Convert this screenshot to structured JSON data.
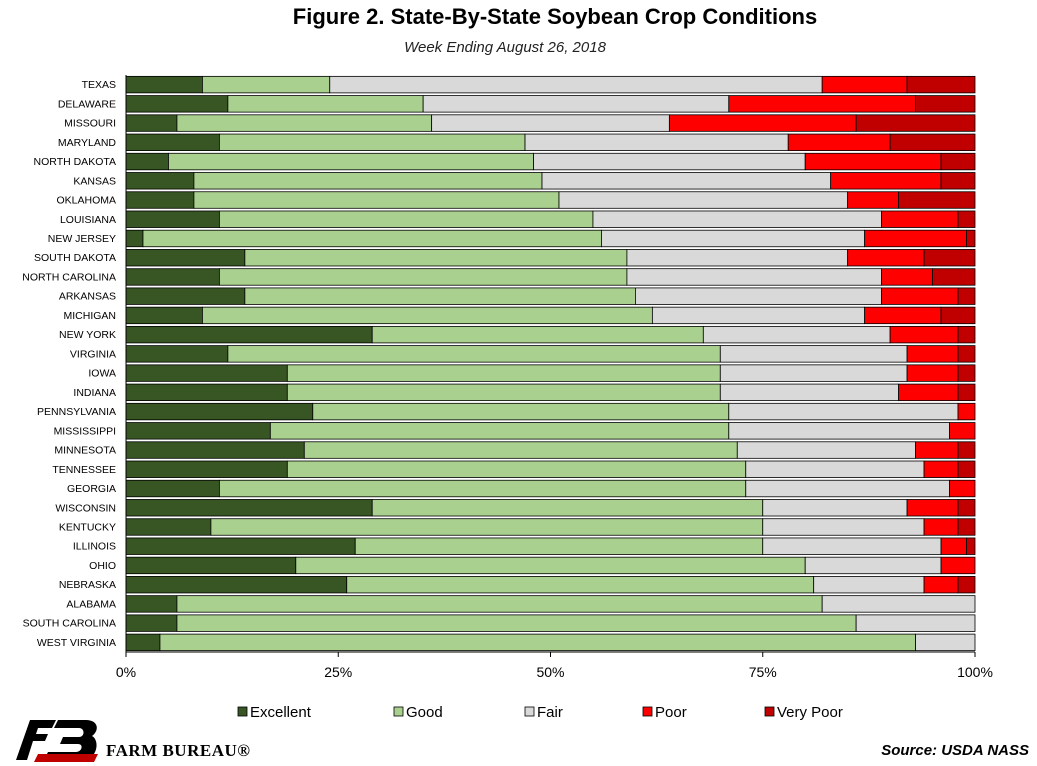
{
  "header": {
    "title": "Figure 2. State-By-State Soybean Crop Conditions",
    "subtitle": "Week Ending August 26, 2018"
  },
  "footer": {
    "source": "Source: USDA NASS",
    "brand": "FARM BUREAU®"
  },
  "colors": {
    "Excellent": "#375623",
    "Good": "#a9d08e",
    "Fair": "#d9d9d9",
    "Poor": "#ff0000",
    "Very Poor": "#c00000"
  },
  "chart_data": {
    "type": "bar",
    "orientation": "horizontal",
    "stacked": true,
    "title": "Figure 2. State-By-State Soybean Crop Conditions",
    "subtitle": "Week Ending August 26, 2018",
    "xlim": [
      0,
      100
    ],
    "x_ticks": [
      "0%",
      "25%",
      "50%",
      "75%",
      "100%"
    ],
    "legend_position": "bottom",
    "grid": false,
    "categories": [
      "TEXAS",
      "DELAWARE",
      "MISSOURI",
      "MARYLAND",
      "NORTH DAKOTA",
      "KANSAS",
      "OKLAHOMA",
      "LOUISIANA",
      "NEW JERSEY",
      "SOUTH DAKOTA",
      "NORTH CAROLINA",
      "ARKANSAS",
      "MICHIGAN",
      "NEW YORK",
      "VIRGINIA",
      "IOWA",
      "INDIANA",
      "PENNSYLVANIA",
      "MISSISSIPPI",
      "MINNESOTA",
      "TENNESSEE",
      "GEORGIA",
      "WISCONSIN",
      "KENTUCKY",
      "ILLINOIS",
      "OHIO",
      "NEBRASKA",
      "ALABAMA",
      "SOUTH CAROLINA",
      "WEST VIRGINIA"
    ],
    "series": [
      {
        "name": "Excellent",
        "values": [
          9,
          12,
          6,
          11,
          5,
          8,
          8,
          11,
          2,
          14,
          11,
          14,
          9,
          29,
          12,
          19,
          19,
          22,
          17,
          21,
          19,
          11,
          29,
          10,
          27,
          20,
          26,
          6,
          6,
          4
        ]
      },
      {
        "name": "Good",
        "values": [
          15,
          23,
          30,
          36,
          43,
          41,
          43,
          44,
          54,
          45,
          48,
          46,
          53,
          39,
          58,
          51,
          51,
          49,
          54,
          51,
          54,
          62,
          46,
          65,
          48,
          60,
          55,
          76,
          80,
          89
        ]
      },
      {
        "name": "Fair",
        "values": [
          58,
          36,
          28,
          31,
          32,
          34,
          34,
          34,
          31,
          26,
          30,
          29,
          25,
          22,
          22,
          22,
          21,
          27,
          26,
          21,
          21,
          24,
          17,
          19,
          21,
          16,
          13,
          18,
          14,
          7
        ]
      },
      {
        "name": "Poor",
        "values": [
          10,
          22,
          22,
          12,
          16,
          13,
          6,
          9,
          12,
          9,
          6,
          9,
          9,
          8,
          6,
          6,
          7,
          2,
          3,
          5,
          4,
          3,
          6,
          4,
          3,
          4,
          4,
          0,
          0,
          0
        ]
      },
      {
        "name": "Very Poor",
        "values": [
          8,
          7,
          14,
          10,
          4,
          4,
          9,
          2,
          1,
          6,
          5,
          2,
          4,
          2,
          2,
          2,
          2,
          0,
          0,
          2,
          2,
          0,
          2,
          2,
          1,
          0,
          2,
          0,
          0,
          0
        ]
      }
    ]
  }
}
